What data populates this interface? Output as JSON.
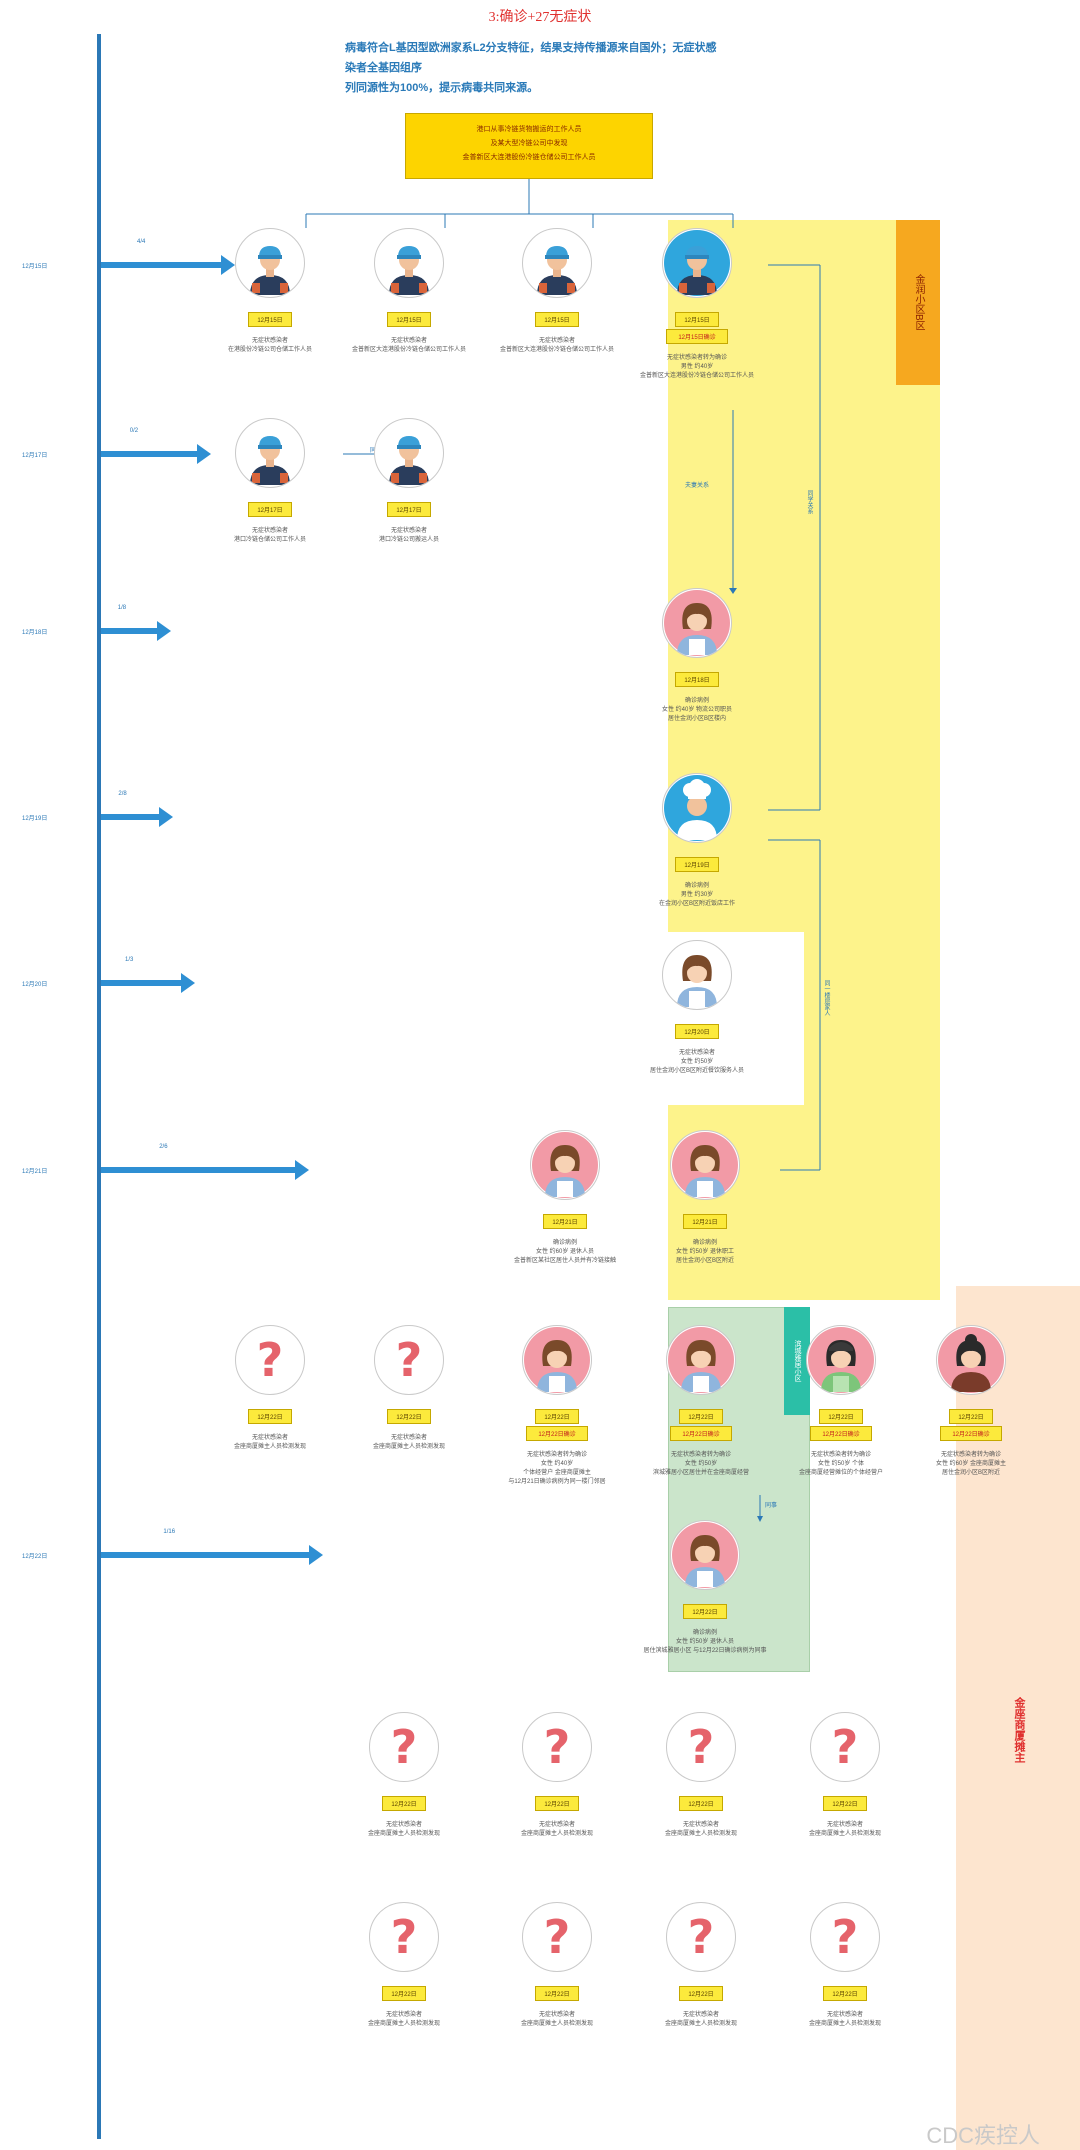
{
  "title": "3:确诊+27无症状",
  "summary": [
    "病毒符合L基因型欧洲家系L2分支特征，结果支持传播源来自国外；无症状感染者全基因组序",
    "列同源性为100%，提示病毒共同来源。"
  ],
  "source_box": [
    "港口从事冷链货物搬运的工作人员",
    "及某大型冷链公司中发现",
    "金普新区大连港股份冷链仓储公司工作人员"
  ],
  "regions": {
    "jinli": "金润小区B区",
    "green": "滨城雅居小区",
    "peach": "金座商厦摊主"
  },
  "timeline": [
    {
      "id": "r1",
      "date": "12月15日",
      "count": "4/4"
    },
    {
      "id": "r2",
      "date": "12月17日",
      "count": "0/2"
    },
    {
      "id": "r3",
      "date": "12月18日",
      "count": "1/8"
    },
    {
      "id": "r4",
      "date": "12月19日",
      "count": "2/8"
    },
    {
      "id": "r5",
      "date": "12月20日",
      "count": "1/3"
    },
    {
      "id": "r6",
      "date": "12月21日",
      "count": "2/6"
    },
    {
      "id": "r7",
      "date": "12月22日",
      "count": "1/16"
    }
  ],
  "edge_labels": {
    "e1": "同事",
    "e2": "夫妻关系",
    "e3": "同学关系",
    "e4": "同一楼层家人",
    "e5": "同事"
  },
  "nodes": [
    {
      "id": "n1",
      "type": "worker-blue",
      "date": "12月15日",
      "desc": [
        "无症状感染者",
        "在港股份冷链公司仓储工作人员"
      ]
    },
    {
      "id": "n2",
      "type": "worker-blue",
      "date": "12月15日",
      "desc": [
        "无症状感染者",
        "金普新区大连港股份冷链仓储公司工作人员"
      ]
    },
    {
      "id": "n3",
      "type": "worker-blue",
      "date": "12月15日",
      "desc": [
        "无症状感染者",
        "金普新区大连港股份冷链仓储公司工作人员"
      ]
    },
    {
      "id": "n4",
      "type": "worker-blue-fill",
      "date": "12月15日",
      "tag": "12月15日确诊",
      "desc": [
        "无症状感染者转为确诊",
        "男性 约40岁",
        "金普新区大连港股份冷链仓储公司工作人员"
      ]
    },
    {
      "id": "n5",
      "type": "worker-blue",
      "date": "12月17日",
      "desc": [
        "无症状感染者",
        "港口冷链仓储公司工作人员"
      ]
    },
    {
      "id": "n6",
      "type": "worker-blue",
      "date": "12月17日",
      "desc": [
        "无症状感染者",
        "港口冷链公司搬运人员"
      ]
    },
    {
      "id": "n7",
      "type": "woman-pink",
      "date": "12月18日",
      "desc": [
        "确诊病例",
        "女性 约40岁 物流公司职员",
        "居住金润小区B区楼内"
      ]
    },
    {
      "id": "n8",
      "type": "chef",
      "date": "12月19日",
      "desc": [
        "确诊病例",
        "男性 约30岁",
        "在金润小区B区附近饭店工作"
      ]
    },
    {
      "id": "n9",
      "type": "woman-white",
      "date": "12月20日",
      "desc": [
        "无症状感染者",
        "女性 约50岁",
        "居住金润小区B区附近餐饮服务人员"
      ]
    },
    {
      "id": "n10",
      "type": "woman-pink",
      "date": "12月21日",
      "desc": [
        "确诊病例",
        "女性 约60岁 退休人员",
        "金普新区某社区居住人员并有冷链接触"
      ]
    },
    {
      "id": "n11",
      "type": "woman-pink",
      "date": "12月21日",
      "desc": [
        "确诊病例",
        "女性 约50岁 退休职工",
        "居住金润小区B区附近"
      ]
    },
    {
      "id": "n12",
      "type": "question",
      "date": "12月22日",
      "desc": [
        "无症状感染者",
        "金座商厦摊主人员检测发现"
      ]
    },
    {
      "id": "n13",
      "type": "question",
      "date": "12月22日",
      "desc": [
        "无症状感染者",
        "金座商厦摊主人员检测发现"
      ]
    },
    {
      "id": "n14",
      "type": "woman-pink",
      "date": "12月22日",
      "tag": "12月22日确诊",
      "desc": [
        "无症状感染者转为确诊",
        "女性 约40岁",
        "个体经营户 金座商厦摊主",
        "与12月21日确诊病例为同一楼门邻居"
      ]
    },
    {
      "id": "n15",
      "type": "woman-pink",
      "date": "12月22日",
      "tag": "12月22日确诊",
      "desc": [
        "无症状感染者转为确诊",
        "女性 约50岁",
        "滨城雅居小区居住并在金座商厦经营"
      ]
    },
    {
      "id": "n16",
      "type": "woman-green",
      "date": "12月22日",
      "tag": "12月22日确诊",
      "desc": [
        "无症状感染者转为确诊",
        "女性 约50岁 个体",
        "金座商厦经营摊位的个体经营户"
      ]
    },
    {
      "id": "n17",
      "type": "woman-dark",
      "date": "12月22日",
      "tag": "12月22日确诊",
      "desc": [
        "无症状感染者转为确诊",
        "女性 约60岁 金座商厦摊主",
        "居住金润小区B区附近"
      ]
    },
    {
      "id": "n18",
      "type": "woman-pink",
      "date": "12月22日",
      "desc": [
        "确诊病例",
        "女性 约50岁 退休人员",
        "居住滨城雅居小区 与12月22日确诊病例为同事"
      ]
    },
    {
      "id": "n19",
      "type": "question",
      "date": "12月22日",
      "desc": [
        "无症状感染者",
        "金座商厦摊主人员检测发现"
      ]
    },
    {
      "id": "n20",
      "type": "question",
      "date": "12月22日",
      "desc": [
        "无症状感染者",
        "金座商厦摊主人员检测发现"
      ]
    },
    {
      "id": "n21",
      "type": "question",
      "date": "12月22日",
      "desc": [
        "无症状感染者",
        "金座商厦摊主人员检测发现"
      ]
    },
    {
      "id": "n22",
      "type": "question",
      "date": "12月22日",
      "desc": [
        "无症状感染者",
        "金座商厦摊主人员检测发现"
      ]
    },
    {
      "id": "n23",
      "type": "question",
      "date": "12月22日",
      "desc": [
        "无症状感染者",
        "金座商厦摊主人员检测发现"
      ]
    },
    {
      "id": "n24",
      "type": "question",
      "date": "12月22日",
      "desc": [
        "无症状感染者",
        "金座商厦摊主人员检测发现"
      ]
    },
    {
      "id": "n25",
      "type": "question",
      "date": "12月22日",
      "desc": [
        "无症状感染者",
        "金座商厦摊主人员检测发现"
      ]
    },
    {
      "id": "n26",
      "type": "question",
      "date": "12月22日",
      "desc": [
        "无症状感染者",
        "金座商厦摊主人员检测发现"
      ]
    }
  ],
  "watermark": "CDC疾控人",
  "colors": {
    "axis": "#2b78b6",
    "arrow": "#2e8fd3",
    "yellow": "#fdf38b",
    "green": "#cbe5cb",
    "peach": "#fde5cf",
    "tag": "#fcea3c",
    "source": "#fdd400"
  }
}
